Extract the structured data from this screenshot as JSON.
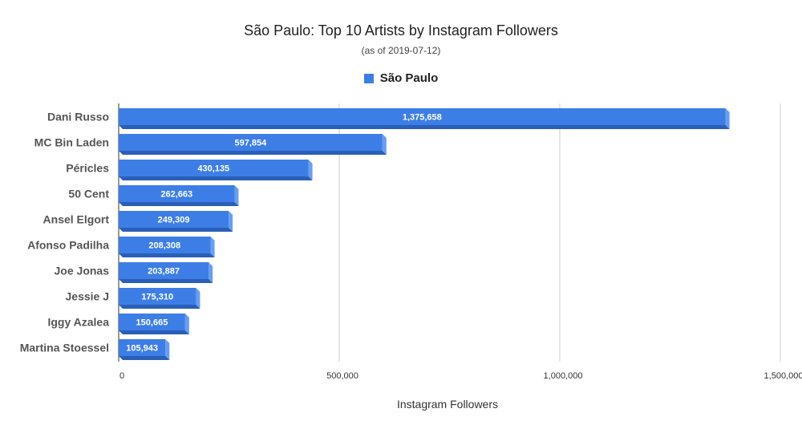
{
  "chart_data": {
    "type": "bar",
    "orientation": "horizontal",
    "title": "São Paulo: Top 10 Artists by Instagram Followers",
    "subtitle": "(as of 2019-07-12)",
    "xlabel": "Instagram Followers",
    "ylabel": "",
    "xlim": [
      0,
      1500000
    ],
    "xticks": [
      0,
      500000,
      1000000,
      1500000
    ],
    "xtick_labels": [
      "0",
      "500,000",
      "1,000,000",
      "1,500,000"
    ],
    "grid": true,
    "legend_position": "top",
    "categories": [
      "Dani Russo",
      "MC Bin Laden",
      "Péricles",
      "50 Cent",
      "Ansel Elgort",
      "Afonso Padilha",
      "Joe Jonas",
      "Jessie J",
      "Iggy Azalea",
      "Martina Stoessel"
    ],
    "series": [
      {
        "name": "São Paulo",
        "color": "#3d7ee6",
        "values": [
          1375658,
          597854,
          430135,
          262663,
          249309,
          208308,
          203887,
          175310,
          150665,
          105943
        ],
        "value_labels": [
          "1,375,658",
          "597,854",
          "430,135",
          "262,663",
          "249,309",
          "208,308",
          "203,887",
          "175,310",
          "150,665",
          "105,943"
        ]
      }
    ]
  }
}
